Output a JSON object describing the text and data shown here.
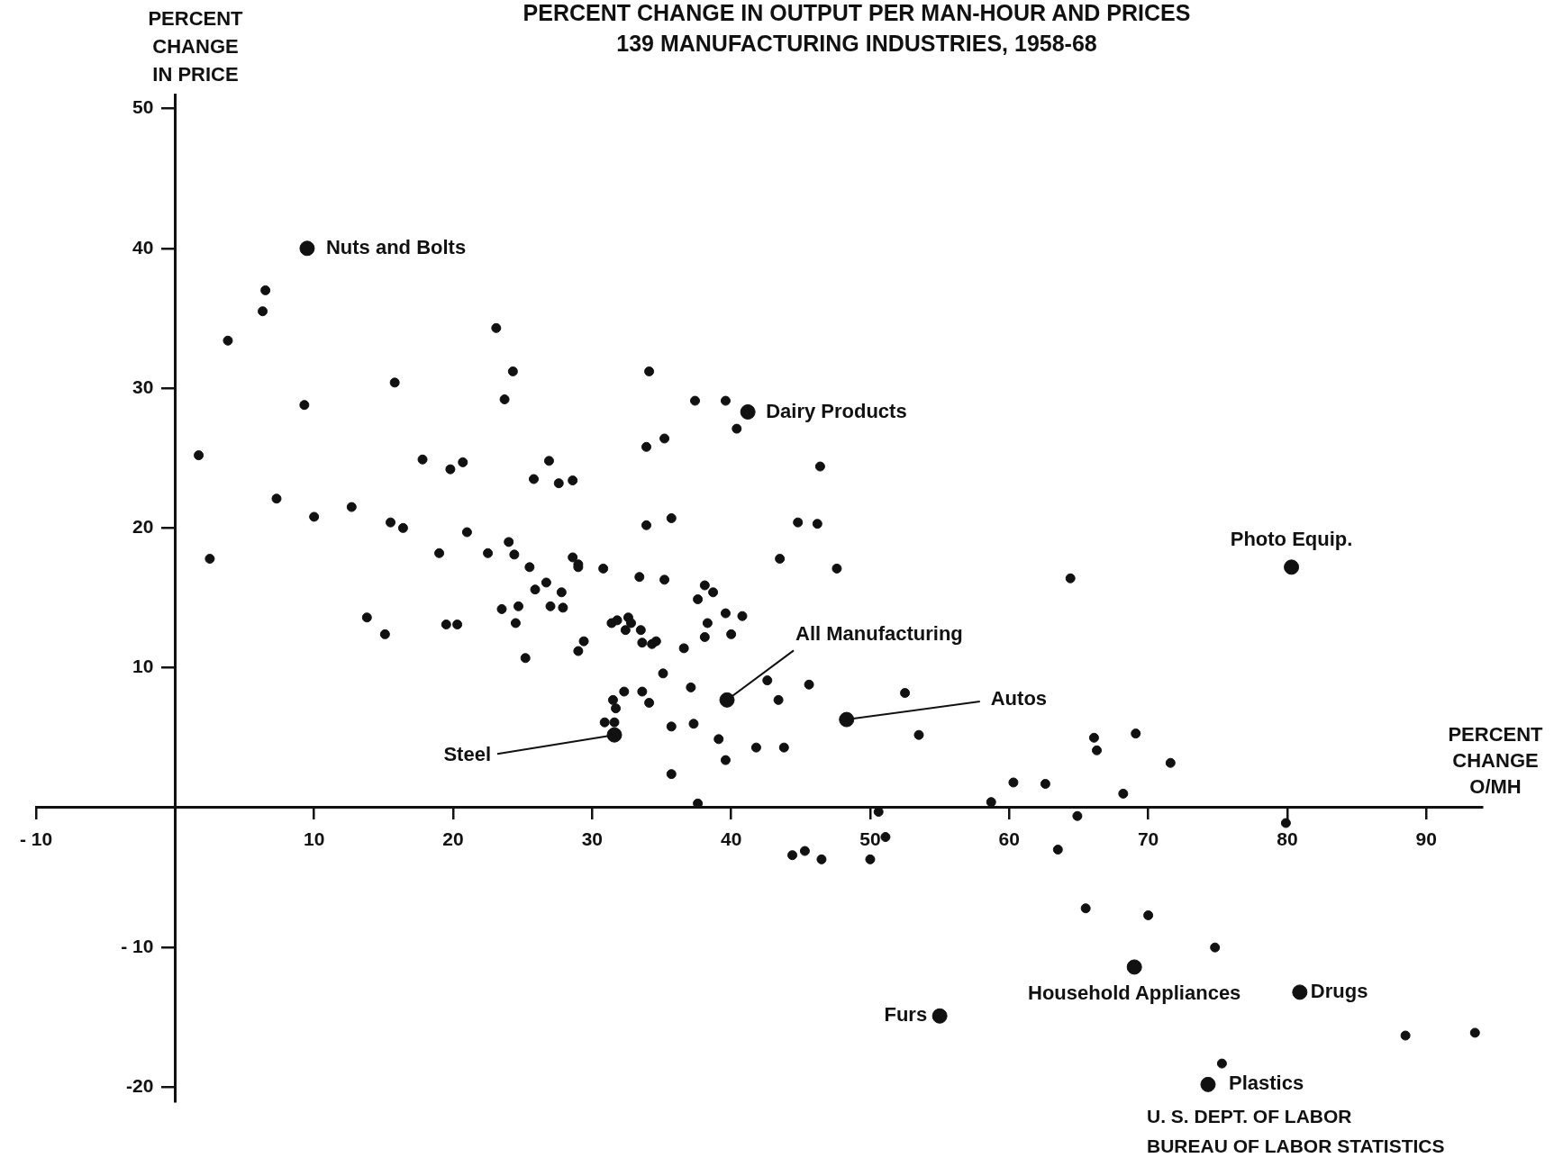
{
  "chart_data": {
    "type": "scatter",
    "title": "PERCENT CHANGE IN OUTPUT PER MAN-HOUR AND PRICES",
    "subtitle": "139 MANUFACTURING INDUSTRIES, 1958-68",
    "xlabel": "PERCENT CHANGE O/MH",
    "ylabel": "PERCENT CHANGE IN PRICE",
    "xlim": [
      -10,
      94
    ],
    "ylim": [
      -21,
      51
    ],
    "xticks": [
      {
        "value": -10,
        "label": "- 10"
      },
      10,
      20,
      30,
      40,
      50,
      60,
      70,
      80,
      90
    ],
    "yticks": [
      {
        "value": -20,
        "label": "-20"
      },
      {
        "value": -10,
        "label": "- 10"
      },
      10,
      20,
      30,
      40,
      50
    ],
    "grid": false,
    "legend": false,
    "marker": "circle",
    "series": [
      {
        "color": "#111111",
        "x": [
          6.5,
          6.3,
          3.8,
          23.1,
          24.3,
          23.7,
          15.8,
          9.3,
          1.7,
          7.3,
          10.0,
          2.5,
          12.7,
          17.8,
          19.8,
          20.7,
          15.5,
          16.4,
          21.0,
          19.0,
          13.8,
          15.1,
          19.5,
          20.3,
          34.1,
          37.4,
          39.6,
          40.4,
          35.2,
          33.9,
          46.4,
          26.9,
          25.8,
          27.6,
          28.6,
          24.0,
          22.5,
          24.4,
          25.5,
          28.6,
          29.0,
          29.0,
          30.8,
          33.9,
          35.7,
          44.8,
          46.2,
          43.5,
          47.6,
          25.9,
          26.7,
          27.8,
          27.0,
          27.9,
          23.5,
          24.7,
          24.5,
          25.2,
          33.4,
          35.2,
          37.6,
          38.1,
          38.7,
          39.6,
          40.8,
          38.3,
          40.0,
          31.4,
          31.8,
          32.6,
          32.8,
          32.4,
          33.5,
          33.6,
          34.3,
          34.6,
          36.6,
          29.4,
          29.0,
          38.1,
          35.1,
          32.3,
          33.6,
          31.5,
          31.7,
          30.9,
          31.6,
          34.1,
          37.1,
          35.7,
          37.3,
          39.1,
          39.6,
          41.8,
          43.8,
          35.7,
          37.6,
          42.6,
          43.4,
          45.6,
          52.5,
          53.5,
          64.4,
          66.1,
          66.3,
          69.1,
          71.6,
          60.3,
          62.6,
          58.7,
          68.2,
          64.9,
          79.9,
          50.6,
          51.1,
          44.4,
          45.3,
          46.5,
          50.0,
          63.5,
          65.5,
          70.0,
          74.8,
          75.3,
          88.5,
          93.5
        ],
        "values": [
          37.0,
          35.5,
          33.4,
          34.3,
          31.2,
          29.2,
          30.4,
          28.8,
          25.2,
          22.1,
          20.8,
          17.8,
          21.5,
          24.9,
          24.2,
          24.7,
          20.4,
          20.0,
          19.7,
          18.2,
          13.6,
          12.4,
          13.1,
          13.1,
          31.2,
          29.1,
          29.1,
          27.1,
          26.4,
          25.8,
          24.4,
          24.8,
          23.5,
          23.2,
          23.4,
          19.0,
          18.2,
          18.1,
          17.2,
          17.9,
          17.4,
          17.2,
          17.1,
          20.2,
          20.7,
          20.4,
          20.3,
          17.8,
          17.1,
          15.6,
          16.1,
          15.4,
          14.4,
          14.3,
          14.2,
          14.4,
          13.2,
          10.7,
          16.5,
          16.3,
          14.9,
          15.9,
          15.4,
          13.9,
          13.7,
          13.2,
          12.4,
          13.2,
          13.4,
          13.6,
          13.2,
          12.7,
          12.7,
          11.8,
          11.7,
          11.9,
          11.4,
          11.9,
          11.2,
          12.2,
          9.6,
          8.3,
          8.3,
          7.7,
          7.1,
          6.1,
          6.1,
          7.5,
          8.6,
          5.8,
          6.0,
          4.9,
          3.4,
          4.3,
          4.3,
          2.4,
          0.3,
          9.1,
          7.7,
          8.8,
          8.2,
          5.2,
          16.4,
          5.0,
          4.1,
          5.3,
          3.2,
          1.8,
          1.7,
          0.4,
          1.0,
          -0.6,
          -1.1,
          -0.3,
          -2.1,
          -3.4,
          -3.1,
          -3.7,
          -3.7,
          -3.0,
          -7.2,
          -7.7,
          -10.0,
          -18.3,
          -16.3,
          -16.1
        ]
      },
      {
        "color": "#111111",
        "x": [
          9.5,
          41.2,
          80.3,
          39.7,
          48.3,
          31.6,
          69.0,
          80.9,
          55.0,
          74.3
        ],
        "values": [
          40.0,
          28.3,
          17.2,
          7.7,
          6.3,
          5.2,
          -11.4,
          -13.2,
          -14.9,
          -19.8
        ]
      }
    ],
    "annotations": [
      {
        "text": "Nuts and Bolts",
        "x": 9.5,
        "y": 40.0
      },
      {
        "text": "Dairy Products",
        "x": 41.2,
        "y": 28.3
      },
      {
        "text": "Photo Equip.",
        "x": 80.3,
        "y": 17.2
      },
      {
        "text": "All Manufacturing",
        "x": 39.7,
        "y": 7.7
      },
      {
        "text": "Autos",
        "x": 48.3,
        "y": 6.3
      },
      {
        "text": "Steel",
        "x": 31.6,
        "y": 5.2
      },
      {
        "text": "Household Appliances",
        "x": 69.0,
        "y": -11.4
      },
      {
        "text": "Drugs",
        "x": 80.9,
        "y": -13.2
      },
      {
        "text": "Furs",
        "x": 55.0,
        "y": -14.9
      },
      {
        "text": "Plastics",
        "x": 74.3,
        "y": -19.8
      },
      "U. S. DEPT. OF LABOR",
      "BUREAU OF LABOR STATISTICS"
    ]
  }
}
